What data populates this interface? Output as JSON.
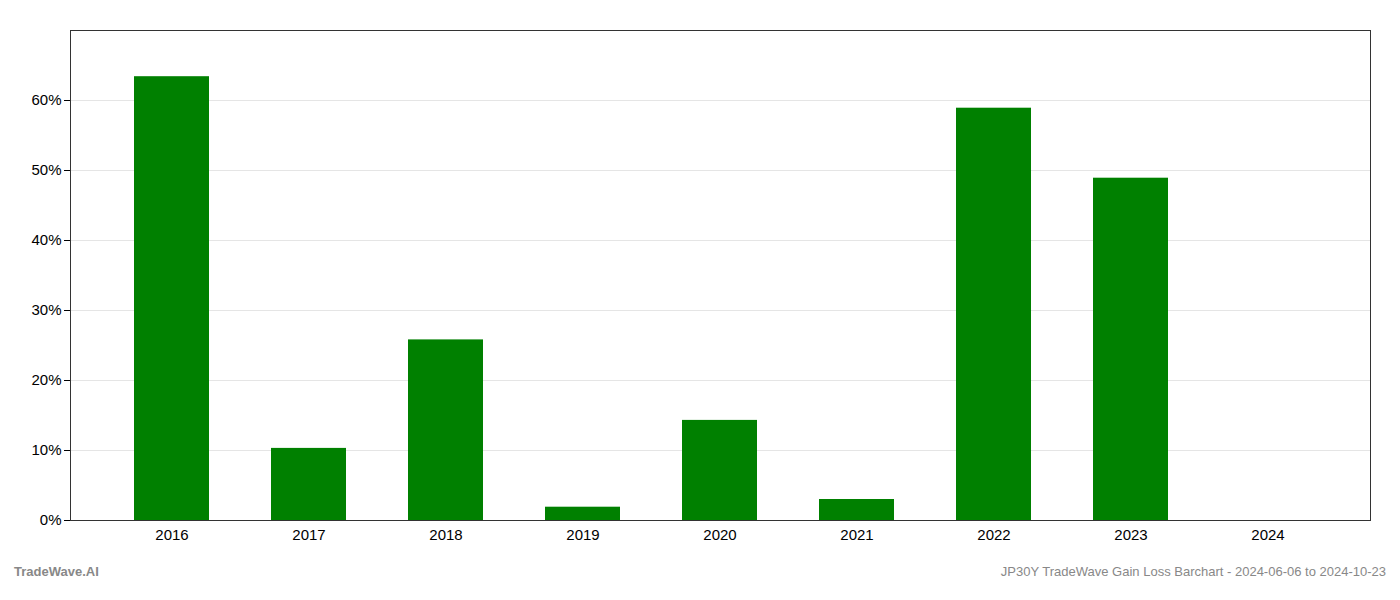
{
  "chart_data": {
    "type": "bar",
    "categories": [
      "2016",
      "2017",
      "2018",
      "2019",
      "2020",
      "2021",
      "2022",
      "2023",
      "2024"
    ],
    "values": [
      0.634,
      0.103,
      0.258,
      0.019,
      0.143,
      0.03,
      0.589,
      0.489,
      0.0
    ],
    "color": "#008000",
    "ylim": [
      0,
      0.7
    ],
    "yticks": [
      {
        "value": 0.0,
        "label": "0%"
      },
      {
        "value": 0.1,
        "label": "10%"
      },
      {
        "value": 0.2,
        "label": "20%"
      },
      {
        "value": 0.3,
        "label": "30%"
      },
      {
        "value": 0.4,
        "label": "40%"
      },
      {
        "value": 0.5,
        "label": "50%"
      },
      {
        "value": 0.6,
        "label": "60%"
      }
    ],
    "grid": true,
    "annotations": [
      "TradeWave.AI",
      "JP30Y TradeWave Gain Loss Barchart - 2024-06-06 to 2024-10-23"
    ]
  }
}
